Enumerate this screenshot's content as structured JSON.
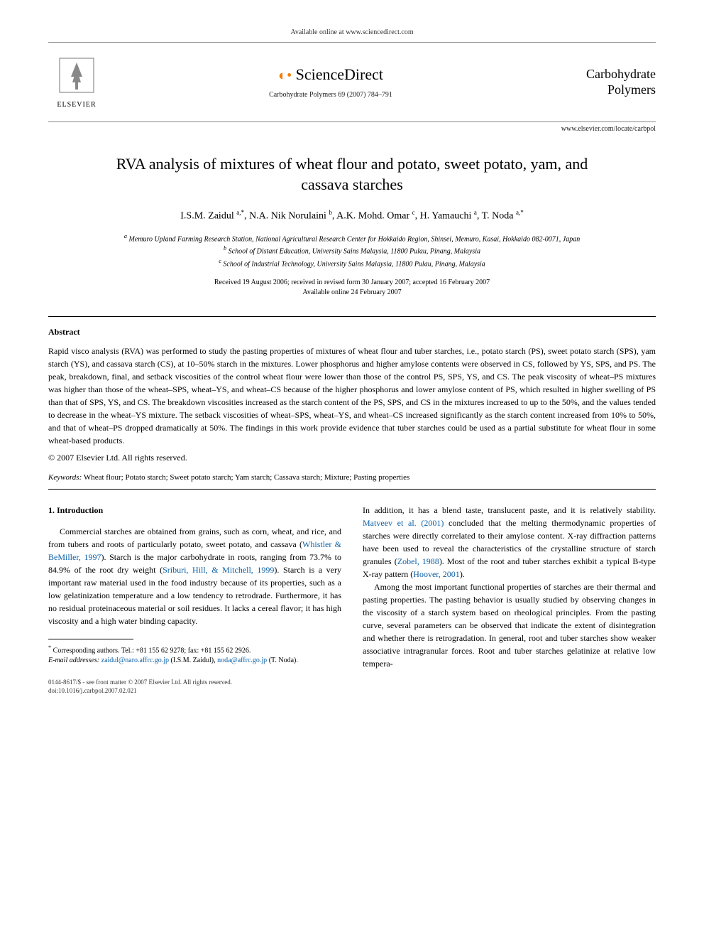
{
  "header": {
    "available_text": "Available online at www.sciencedirect.com",
    "scidirect_label": "ScienceDirect",
    "journal_ref": "Carbohydrate Polymers 69 (2007) 784–791",
    "elsevier_label": "ELSEVIER",
    "journal_logo_line1": "Carbohydrate",
    "journal_logo_line2": "Polymers",
    "journal_site": "www.elsevier.com/locate/carbpol"
  },
  "title": "RVA analysis of mixtures of wheat flour and potato, sweet potato, yam, and cassava starches",
  "authors_html": "I.S.M. Zaidul <sup>a,*</sup>, N.A. Nik Norulaini <sup>b</sup>, A.K. Mohd. Omar <sup>c</sup>, H. Yamauchi <sup>a</sup>, T. Noda <sup>a,*</sup>",
  "affiliations": {
    "a": "Memuro Upland Farming Research Station, National Agricultural Research Center for Hokkaido Region, Shinsei, Memuro, Kasai, Hokkaido 082-0071, Japan",
    "b": "School of Distant Education, University Sains Malaysia, 11800 Pulau, Pinang, Malaysia",
    "c": "School of Industrial Technology, University Sains Malaysia, 11800 Pulau, Pinang, Malaysia"
  },
  "dates": {
    "line1": "Received 19 August 2006; received in revised form 30 January 2007; accepted 16 February 2007",
    "line2": "Available online 24 February 2007"
  },
  "abstract_heading": "Abstract",
  "abstract_text": "Rapid visco analysis (RVA) was performed to study the pasting properties of mixtures of wheat flour and tuber starches, i.e., potato starch (PS), sweet potato starch (SPS), yam starch (YS), and cassava starch (CS), at 10–50% starch in the mixtures. Lower phosphorus and higher amylose contents were observed in CS, followed by YS, SPS, and PS. The peak, breakdown, final, and setback viscosities of the control wheat flour were lower than those of the control PS, SPS, YS, and CS. The peak viscosity of wheat–PS mixtures was higher than those of the wheat–SPS, wheat–YS, and wheat–CS because of the higher phosphorus and lower amylose content of PS, which resulted in higher swelling of PS than that of SPS, YS, and CS. The breakdown viscosities increased as the starch content of the PS, SPS, and CS in the mixtures increased to up to the 50%, and the values tended to decrease in the wheat–YS mixture. The setback viscosities of wheat–SPS, wheat–YS, and wheat–CS increased significantly as the starch content increased from 10% to 50%, and that of wheat–PS dropped dramatically at 50%. The findings in this work provide evidence that tuber starches could be used as a partial substitute for wheat flour in some wheat-based products.",
  "copyright": "© 2007 Elsevier Ltd. All rights reserved.",
  "keywords_label": "Keywords:",
  "keywords_text": " Wheat flour; Potato starch; Sweet potato starch; Yam starch; Cassava starch; Mixture; Pasting properties",
  "intro_heading": "1. Introduction",
  "col1_p1_a": "Commercial starches are obtained from grains, such as corn, wheat, and rice, and from tubers and roots of particularly potato, sweet potato, and cassava (",
  "col1_cite1": "Whistler & BeMiller, 1997",
  "col1_p1_b": "). Starch is the major carbohydrate in roots, ranging from 73.7% to 84.9% of the root dry weight (",
  "col1_cite2": "Sriburi, Hill, & Mitchell, 1999",
  "col1_p1_c": "). Starch is a very important raw material used in the food industry because of its properties, such as a low gelatinization temperature and a low tendency to retrodrade. Furthermore, it has no residual proteinaceous material or soil residues. It lacks a cereal flavor; it has high viscosity and a high water binding capacity.",
  "col2_p1_a": "In addition, it has a blend taste, translucent paste, and it is relatively stability. ",
  "col2_cite1": "Matveev et al. (2001)",
  "col2_p1_b": " concluded that the melting thermodynamic properties of starches were directly correlated to their amylose content. X-ray diffraction patterns have been used to reveal the characteristics of the crystalline structure of starch granules (",
  "col2_cite2": "Zobel, 1988",
  "col2_p1_c": "). Most of the root and tuber starches exhibit a typical B-type X-ray pattern (",
  "col2_cite3": "Hoover, 2001",
  "col2_p1_d": ").",
  "col2_p2": "Among the most important functional properties of starches are their thermal and pasting properties. The pasting behavior is usually studied by observing changes in the viscosity of a starch system based on rheological principles. From the pasting curve, several parameters can be observed that indicate the extent of disintegration and whether there is retrogradation. In general, root and tuber starches show weaker associative intragranular forces. Root and tuber starches gelatinize at relative low tempera-",
  "footnote": {
    "corr": "Corresponding authors. Tel.: +81 155 62 9278; fax: +81 155 62 2926.",
    "email_label": "E-mail addresses:",
    "email1": "zaidul@naro.affrc.go.jp",
    "email1_who": " (I.S.M. Zaidul), ",
    "email2": "noda@affrc.go.jp",
    "email2_who": " (T. Noda)."
  },
  "footer": {
    "line1": "0144-8617/$ - see front matter © 2007 Elsevier Ltd. All rights reserved.",
    "line2": "doi:10.1016/j.carbpol.2007.02.021"
  },
  "colors": {
    "link": "#0a5fa5",
    "orange": "#f57c00",
    "text": "#000000",
    "rule": "#000000"
  },
  "fonts": {
    "body_size_pt": 12,
    "title_size_pt": 22,
    "small_size_pt": 10
  }
}
